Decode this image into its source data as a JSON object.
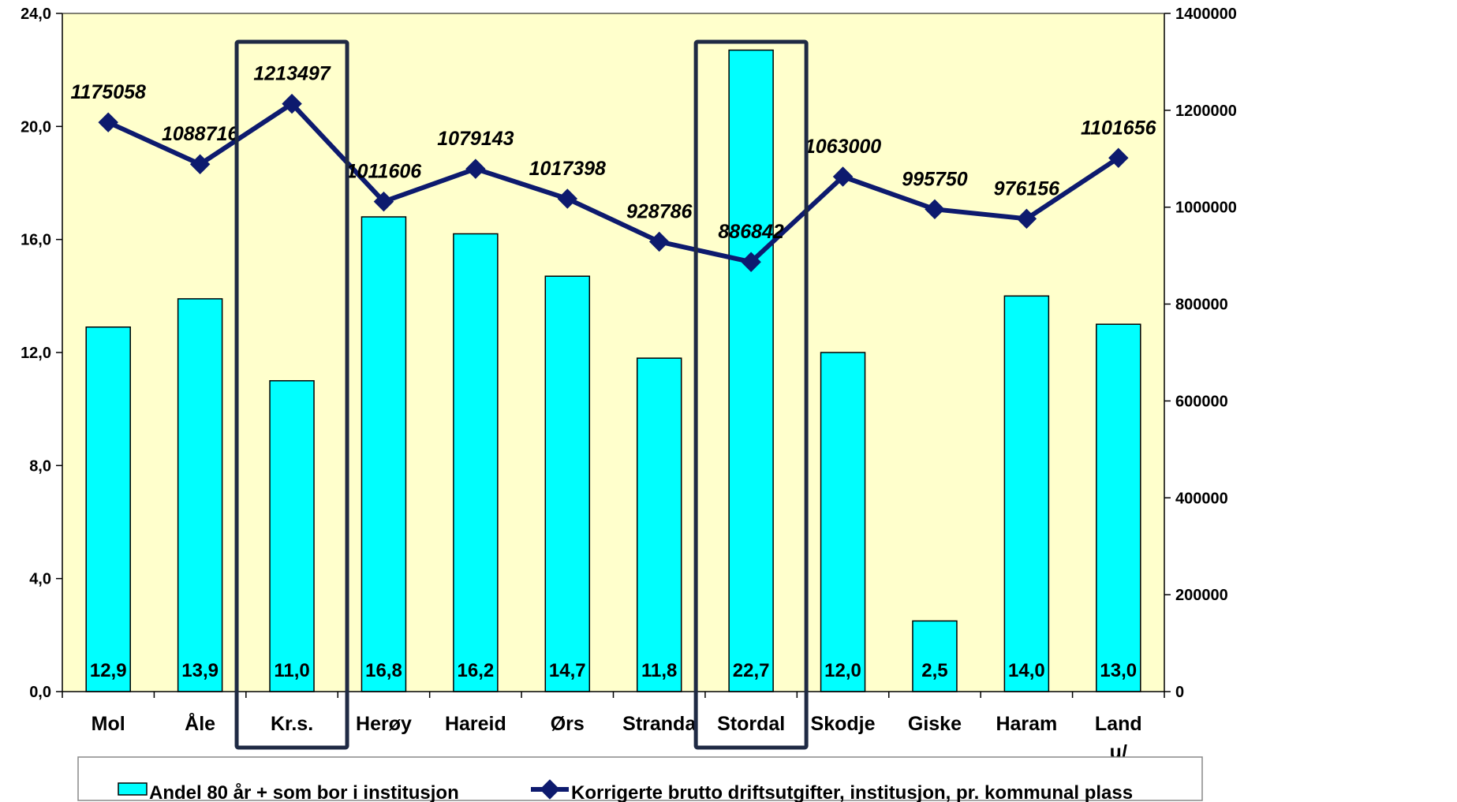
{
  "chart_data": {
    "type": "bar",
    "categories": [
      "Mol",
      "Åle",
      "Kr.s.",
      "Herøy",
      "Hareid",
      "Ørs",
      "Stranda",
      "Stordal",
      "Skodje",
      "Giske",
      "Haram",
      "Land u/ Oslo"
    ],
    "series": [
      {
        "name": "Andel 80 år + som bor i institusjon",
        "type": "bar",
        "axis": "left",
        "values": [
          12.9,
          13.9,
          11.0,
          16.8,
          16.2,
          14.7,
          11.8,
          22.7,
          12.0,
          2.5,
          14.0,
          13.0
        ],
        "labels": [
          "12,9",
          "13,9",
          "11,0",
          "16,8",
          "16,2",
          "14,7",
          "11,8",
          "22,7",
          "12,0",
          "2,5",
          "14,0",
          "13,0"
        ],
        "color": "#00FFFF"
      },
      {
        "name": "Korrigerte brutto driftsutgifter, institusjon, pr. kommunal plass",
        "type": "line",
        "axis": "right",
        "values": [
          1175058,
          1088716,
          1213497,
          1011606,
          1079143,
          1017398,
          928786,
          886842,
          1063000,
          995750,
          976156,
          1101656
        ],
        "labels": [
          "1175058",
          "1088716",
          "1213497",
          "1011606",
          "1079143",
          "1017398",
          "928786",
          "886842",
          "1063000",
          "995750",
          "976156",
          "1101656"
        ],
        "color": "#0D1A6E"
      }
    ],
    "y_left": {
      "min": 0,
      "max": 24,
      "step": 4,
      "tick_labels": [
        "0,0",
        "4,0",
        "8,0",
        "12,0",
        "16,0",
        "20,0",
        "24,0"
      ]
    },
    "y_right": {
      "min": 0,
      "max": 1400000,
      "step": 200000,
      "tick_labels": [
        "0",
        "200000",
        "400000",
        "600000",
        "800000",
        "1000000",
        "1200000",
        "1400000"
      ]
    },
    "highlighted_categories": [
      "Kr.s.",
      "Stordal"
    ],
    "plot_background": "#FFFFCC",
    "highlight_color": "#1F2A44",
    "grid": false,
    "legend_position": "bottom",
    "title": "",
    "xlabel": "",
    "ylabel": ""
  }
}
